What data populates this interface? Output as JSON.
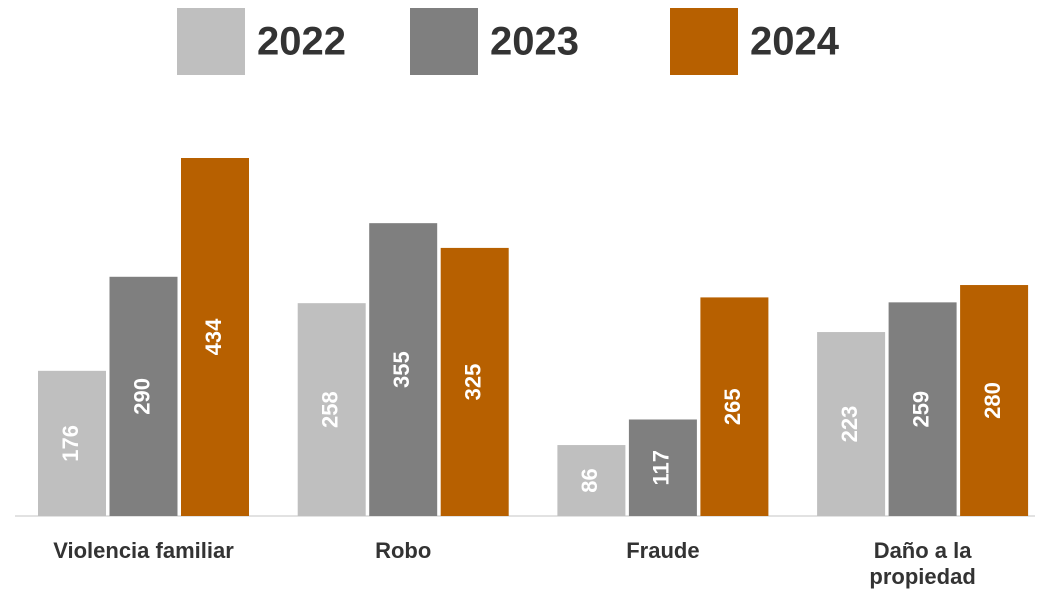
{
  "chart_data": {
    "type": "bar",
    "categories": [
      "Violencia familiar",
      "Robo",
      "Fraude",
      "Daño a la propiedad"
    ],
    "series": [
      {
        "name": "2022",
        "color": "#bfbfbf",
        "values": [
          176,
          258,
          86,
          223
        ]
      },
      {
        "name": "2023",
        "color": "#7f7f7f",
        "values": [
          290,
          355,
          117,
          259
        ]
      },
      {
        "name": "2024",
        "color": "#b76000",
        "values": [
          434,
          325,
          265,
          280
        ]
      }
    ],
    "legend": "top"
  }
}
